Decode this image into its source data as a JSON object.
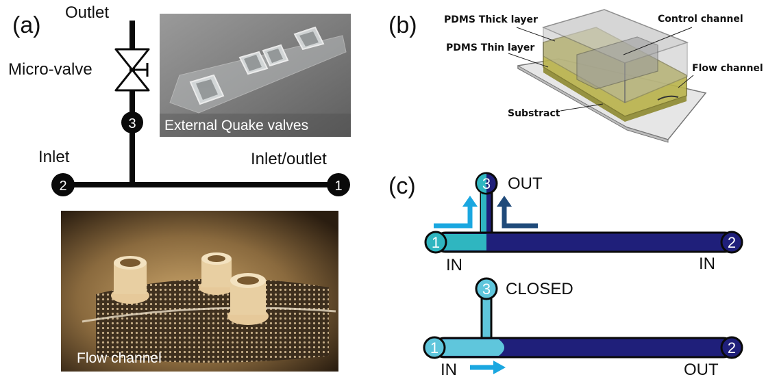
{
  "panels": {
    "a": {
      "tag": "(a)",
      "outlet_label": "Outlet",
      "valve_label": "Micro-valve",
      "inlet_label": "Inlet",
      "inlet_outlet_label": "Inlet/outlet",
      "node_3": "3",
      "node_2": "2",
      "node_1": "1",
      "photo_top_caption": "External Quake valves",
      "photo_bottom_caption": "Flow channel"
    },
    "b": {
      "tag": "(b)",
      "thick_layer": "PDMS Thick layer",
      "thin_layer": "PDMS Thin layer",
      "control_channel": "Control channel",
      "flow_channel": "Flow channel",
      "substract": "Substract"
    },
    "c": {
      "tag": "(c)",
      "open": {
        "node_1": "1",
        "node_2": "2",
        "node_3": "3",
        "port_3_label": "OUT",
        "port_1_label": "IN",
        "port_2_label": "IN"
      },
      "closed": {
        "node_1": "1",
        "node_2": "2",
        "node_3": "3",
        "port_3_label": "CLOSED",
        "port_1_label": "IN",
        "port_2_label": "OUT"
      }
    }
  },
  "colors": {
    "light_blue": "#1aa7e0",
    "teal": "#2fb6c0",
    "navy": "#1f1f7a",
    "dark_navy_arrow": "#1f4a7a",
    "pale_blue": "#5fc6dc",
    "black": "#0a0a0a"
  }
}
